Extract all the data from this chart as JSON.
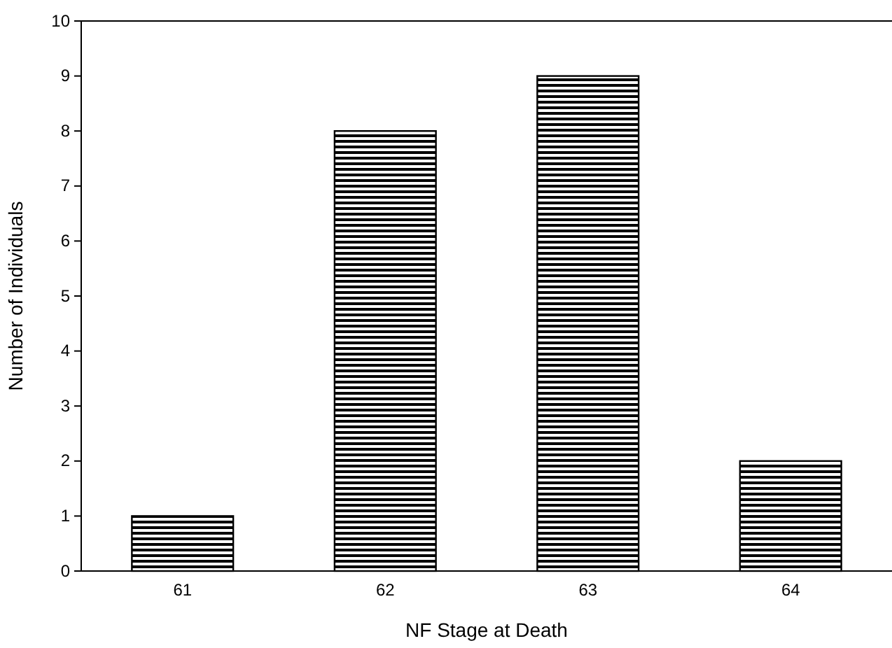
{
  "chart_data": {
    "type": "bar",
    "xlabel": "NF Stage at Death",
    "ylabel": "Number of Individuals",
    "categories": [
      "61",
      "62",
      "63",
      "64"
    ],
    "values": [
      1,
      8,
      9,
      2
    ],
    "color": "#000000",
    "ylim": [
      0,
      10
    ],
    "yticks": [
      0,
      1,
      2,
      3,
      4,
      5,
      6,
      7,
      8,
      9,
      10
    ],
    "grid": false
  }
}
